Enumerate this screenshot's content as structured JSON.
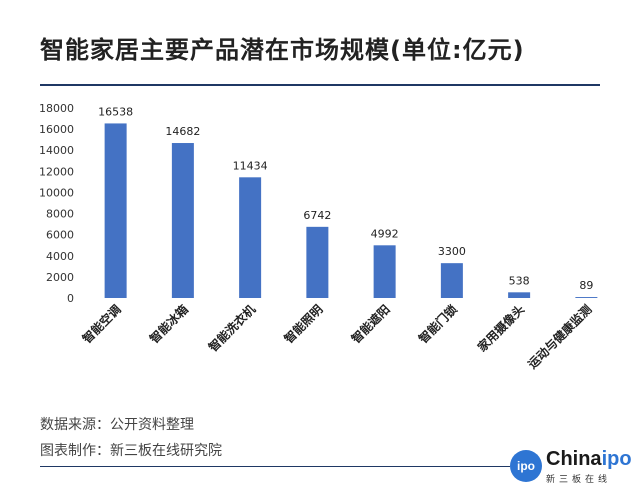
{
  "title": "智能家居主要产品潜在市场规模(单位:亿元)",
  "footer": {
    "source": "数据来源：公开资料整理",
    "made_by": "图表制作：新三板在线研究院"
  },
  "logo": {
    "badge": "ipo",
    "word_a": "China",
    "word_b": "ipo",
    "sub": "新三板在线"
  },
  "colors": {
    "bar": "#4472c4",
    "rule": "#1f3864"
  },
  "chart_data": {
    "type": "bar",
    "title": "智能家居主要产品潜在市场规模(单位:亿元)",
    "categories": [
      "智能空调",
      "智能冰箱",
      "智能洗衣机",
      "智能照明",
      "智能遮阳",
      "智能门锁",
      "家用摄像头",
      "运动与健康监测"
    ],
    "values": [
      16538,
      14682,
      11434,
      6742,
      4992,
      3300,
      538,
      89
    ],
    "ylim": [
      0,
      18000
    ],
    "yticks": [
      0,
      2000,
      4000,
      6000,
      8000,
      10000,
      12000,
      14000,
      16000,
      18000
    ],
    "grid": false,
    "legend": "none"
  }
}
